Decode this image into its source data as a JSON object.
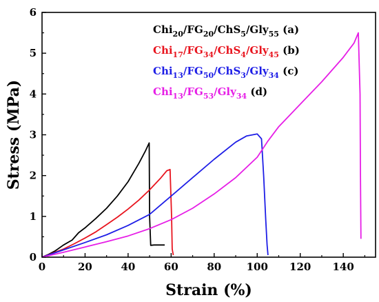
{
  "chart_data": {
    "type": "line",
    "xlabel": "Strain (%)",
    "ylabel": "Stress (MPa)",
    "xlim": [
      0,
      155
    ],
    "ylim": [
      0,
      6
    ],
    "x_ticks": [
      0,
      20,
      40,
      60,
      80,
      100,
      120,
      140
    ],
    "y_ticks": [
      0,
      1,
      2,
      3,
      4,
      5,
      6
    ],
    "grid": false,
    "legend_position": "top-right",
    "series": [
      {
        "name_parts": [
          [
            "Chi",
            "20",
            "/FG",
            "20",
            "/ChS",
            "5",
            "/Gly",
            "55",
            " (a)"
          ]
        ],
        "label_color": "#000000",
        "color": "#000000",
        "x": [
          0,
          3,
          6,
          10,
          14,
          17,
          20,
          25,
          30,
          35,
          40,
          45,
          48,
          49.8,
          50,
          50.5,
          52,
          55,
          57
        ],
        "y": [
          0,
          0.07,
          0.15,
          0.3,
          0.42,
          0.6,
          0.72,
          0.95,
          1.2,
          1.5,
          1.85,
          2.3,
          2.6,
          2.8,
          1.0,
          0.29,
          0.3,
          0.3,
          0.3
        ]
      },
      {
        "name_parts": [
          [
            "Chi",
            "17",
            "/FG",
            "34",
            "/ChS",
            "4",
            "/Gly",
            "45",
            " (b)"
          ]
        ],
        "label_color": "#e8141e",
        "color": "#e8141e",
        "x": [
          0,
          5,
          10,
          15,
          20,
          25,
          30,
          35,
          40,
          45,
          50,
          55,
          58,
          59.5,
          60.2,
          60.5,
          61
        ],
        "y": [
          0,
          0.1,
          0.2,
          0.33,
          0.47,
          0.62,
          0.8,
          0.98,
          1.18,
          1.4,
          1.65,
          1.93,
          2.12,
          2.15,
          1.0,
          0.2,
          0.05
        ]
      },
      {
        "name_parts": [
          [
            "Chi",
            "13",
            "/FG",
            "50",
            "/ChS",
            "3",
            "/Gly",
            "34",
            " (c)"
          ]
        ],
        "label_color": "#1e1ee6",
        "color": "#1e1ee6",
        "x": [
          0,
          10,
          20,
          30,
          40,
          50,
          60,
          70,
          80,
          90,
          95,
          100,
          102,
          103,
          104,
          104.6,
          105
        ],
        "y": [
          0,
          0.18,
          0.36,
          0.55,
          0.78,
          1.05,
          1.5,
          1.95,
          2.4,
          2.82,
          2.97,
          3.02,
          2.9,
          2.0,
          0.9,
          0.3,
          0.05
        ]
      },
      {
        "name_parts": [
          [
            "Chi",
            "13",
            "/FG",
            "53",
            "/Gly",
            "34",
            " (d)"
          ]
        ],
        "label_color": "#e61ee6",
        "color": "#e61ee6",
        "x": [
          0,
          10,
          20,
          30,
          40,
          50,
          60,
          70,
          80,
          90,
          100,
          105,
          110,
          120,
          130,
          140,
          145,
          147,
          147.8,
          148,
          148.2
        ],
        "y": [
          0,
          0.12,
          0.25,
          0.38,
          0.52,
          0.7,
          0.92,
          1.2,
          1.55,
          1.95,
          2.45,
          2.85,
          3.2,
          3.75,
          4.3,
          4.9,
          5.25,
          5.5,
          4.0,
          2.0,
          0.45
        ]
      }
    ]
  }
}
